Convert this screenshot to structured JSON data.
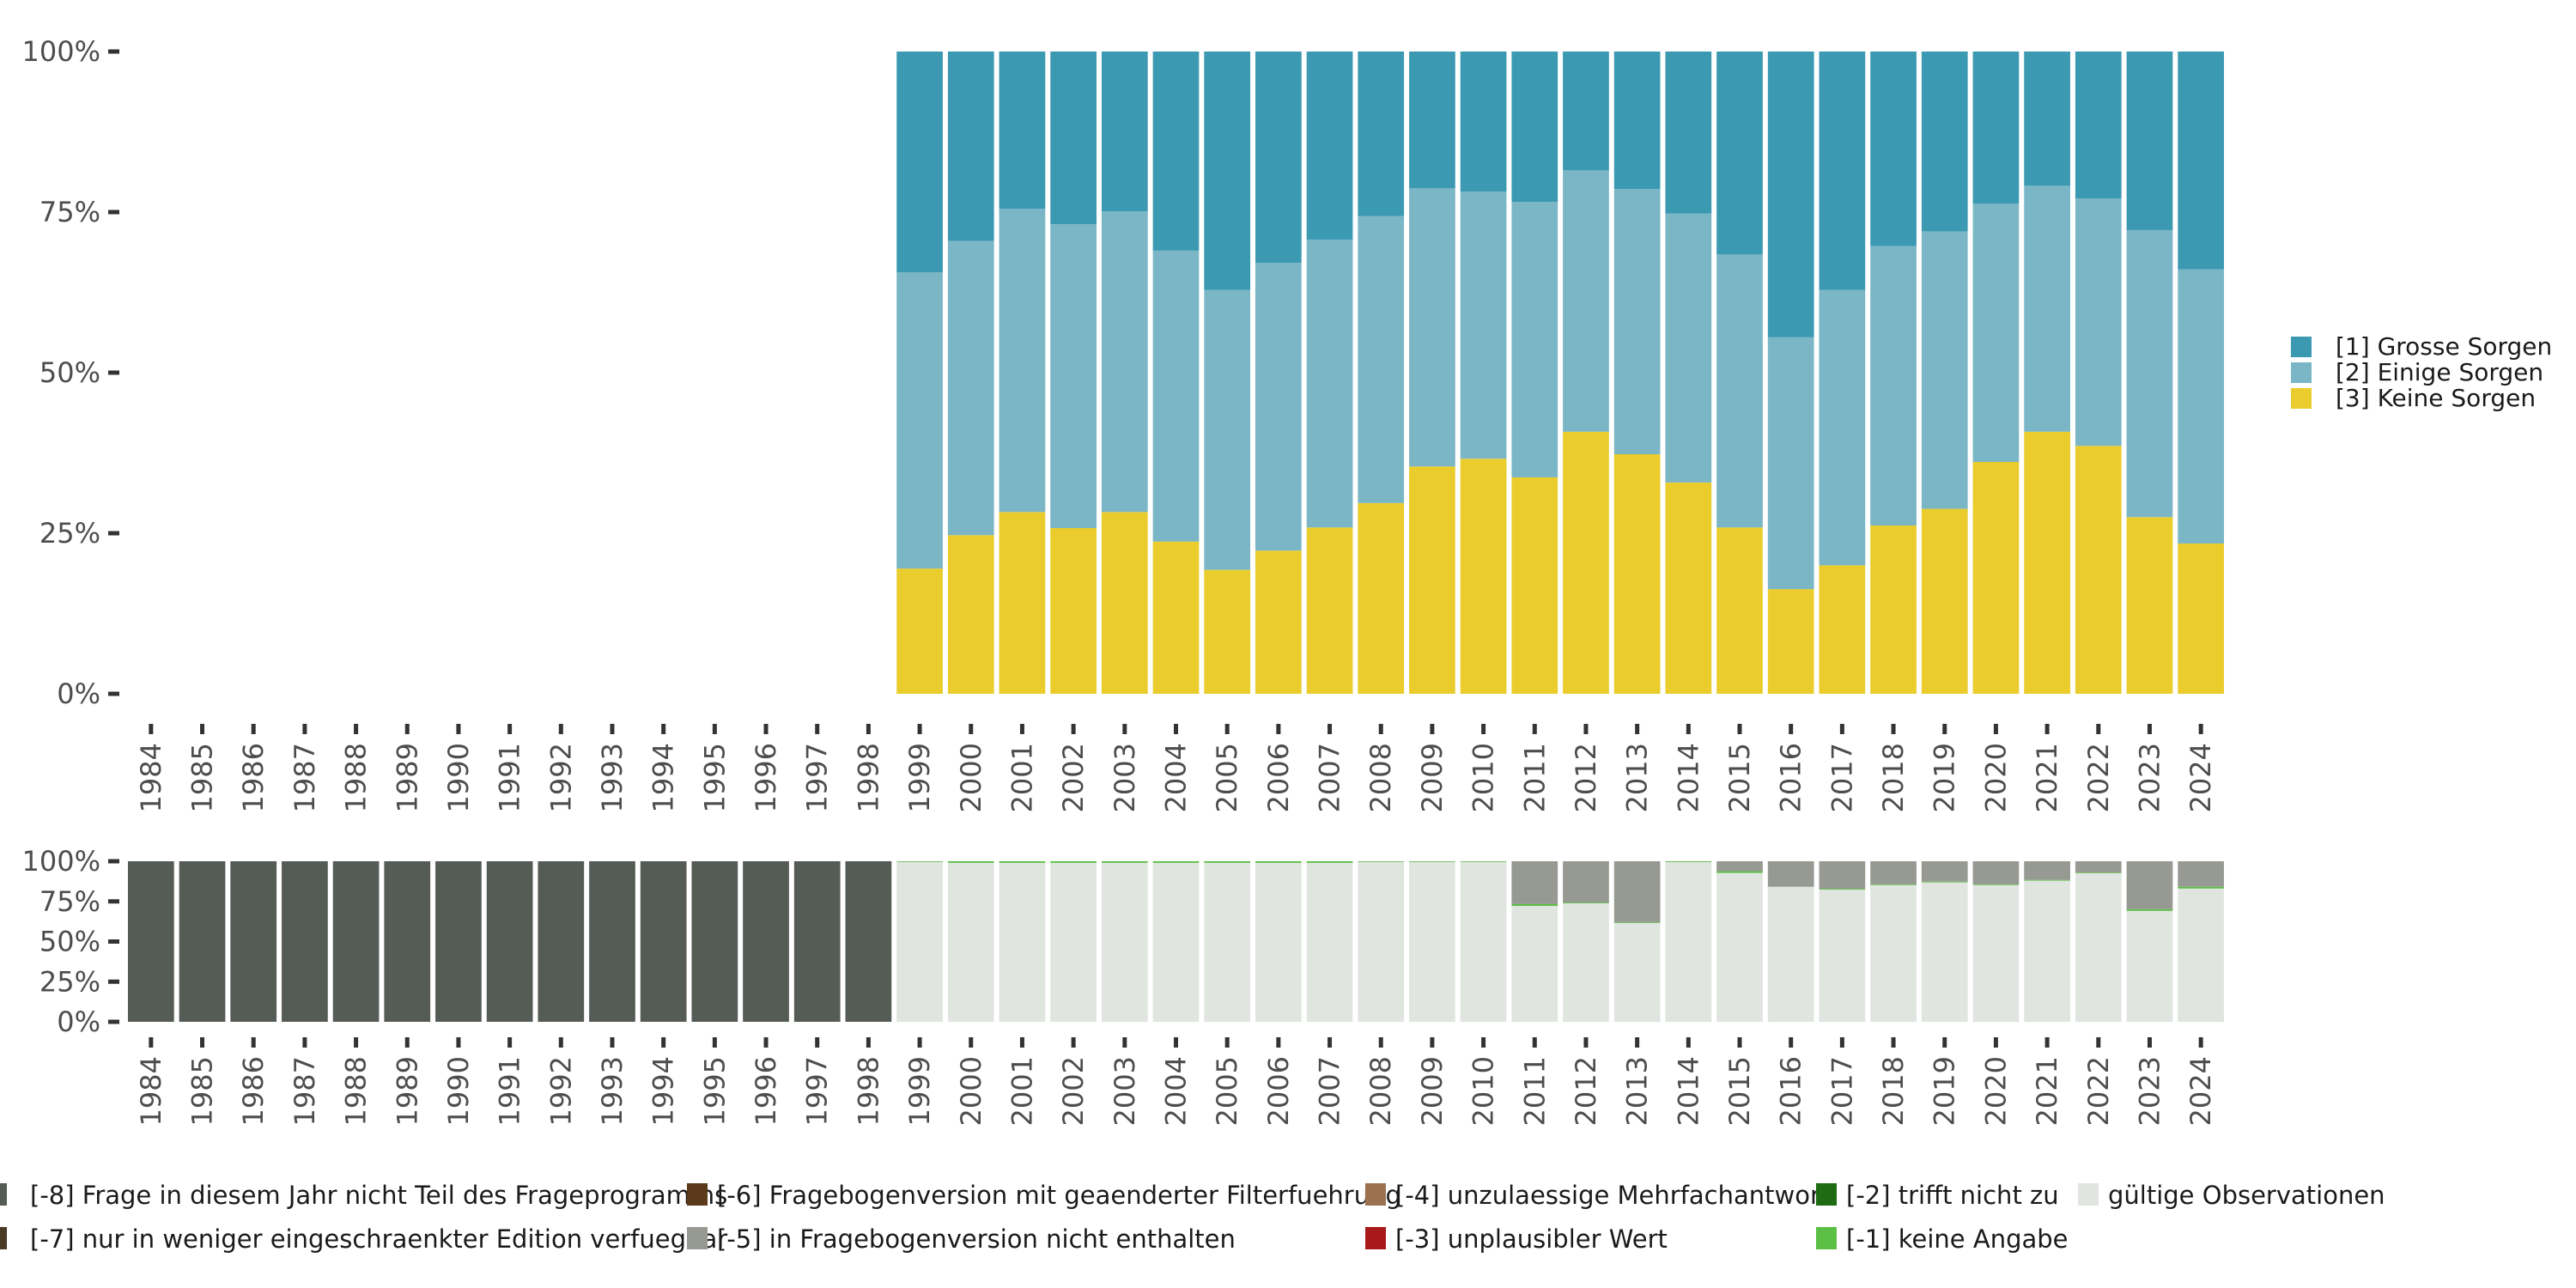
{
  "chart_data": [
    {
      "type": "bar",
      "stacked": true,
      "title": "",
      "xlabel": "",
      "ylabel": "",
      "ylim": [
        0,
        100
      ],
      "y_ticks": [
        "0%",
        "25%",
        "50%",
        "75%",
        "100%"
      ],
      "grid": false,
      "legend_position": "right",
      "categories": [
        "1984",
        "1985",
        "1986",
        "1987",
        "1988",
        "1989",
        "1990",
        "1991",
        "1992",
        "1993",
        "1994",
        "1995",
        "1996",
        "1997",
        "1998",
        "1999",
        "2000",
        "2001",
        "2002",
        "2003",
        "2004",
        "2005",
        "2006",
        "2007",
        "2008",
        "2009",
        "2010",
        "2011",
        "2012",
        "2013",
        "2014",
        "2015",
        "2016",
        "2017",
        "2018",
        "2019",
        "2020",
        "2021",
        "2022",
        "2023",
        "2024"
      ],
      "series": [
        {
          "name": "[3] Keine Sorgen",
          "color": "#EACD2C",
          "values": [
            null,
            null,
            null,
            null,
            null,
            null,
            null,
            null,
            null,
            null,
            null,
            null,
            null,
            null,
            null,
            19.5,
            24.7,
            28.3,
            25.8,
            28.3,
            23.7,
            19.3,
            22.3,
            25.9,
            29.7,
            35.4,
            36.6,
            33.7,
            40.8,
            37.3,
            32.9,
            25.9,
            16.3,
            20.0,
            26.2,
            28.8,
            36.1,
            40.8,
            38.6,
            27.5,
            23.4
          ]
        },
        {
          "name": "[2] Einige Sorgen",
          "color": "#7AB6C5",
          "values": [
            null,
            null,
            null,
            null,
            null,
            null,
            null,
            null,
            null,
            null,
            null,
            null,
            null,
            null,
            null,
            46.1,
            45.8,
            47.2,
            47.3,
            46.8,
            45.3,
            43.6,
            44.8,
            44.8,
            44.7,
            43.3,
            41.6,
            42.9,
            40.7,
            41.3,
            41.9,
            42.5,
            39.2,
            42.9,
            43.5,
            43.2,
            40.2,
            38.3,
            38.5,
            44.7,
            42.7
          ]
        },
        {
          "name": "[1] Grosse Sorgen",
          "color": "#3C99B2",
          "values": [
            null,
            null,
            null,
            null,
            null,
            null,
            null,
            null,
            null,
            null,
            null,
            null,
            null,
            null,
            null,
            34.4,
            29.5,
            24.5,
            26.9,
            24.9,
            31.0,
            37.1,
            32.9,
            29.3,
            25.6,
            21.3,
            21.8,
            23.4,
            18.5,
            21.4,
            25.2,
            31.6,
            44.5,
            37.1,
            30.3,
            28.0,
            23.7,
            20.9,
            22.9,
            27.8,
            33.9
          ]
        }
      ],
      "legend": [
        "[1] Grosse Sorgen",
        "[2] Einige Sorgen",
        "[3] Keine Sorgen"
      ]
    },
    {
      "type": "bar",
      "stacked": true,
      "title": "",
      "xlabel": "",
      "ylabel": "",
      "ylim": [
        0,
        100
      ],
      "y_ticks": [
        "0%",
        "25%",
        "50%",
        "75%",
        "100%"
      ],
      "grid": false,
      "legend_position": "bottom",
      "categories": [
        "1984",
        "1985",
        "1986",
        "1987",
        "1988",
        "1989",
        "1990",
        "1991",
        "1992",
        "1993",
        "1994",
        "1995",
        "1996",
        "1997",
        "1998",
        "1999",
        "2000",
        "2001",
        "2002",
        "2003",
        "2004",
        "2005",
        "2006",
        "2007",
        "2008",
        "2009",
        "2010",
        "2011",
        "2012",
        "2013",
        "2014",
        "2015",
        "2016",
        "2017",
        "2018",
        "2019",
        "2020",
        "2021",
        "2022",
        "2023",
        "2024"
      ],
      "series": [
        {
          "name": "gültige Observationen",
          "color": "#E0E5E0",
          "values": [
            0,
            0,
            0,
            0,
            0,
            0,
            0,
            0,
            0,
            0,
            0,
            0,
            0,
            0,
            0,
            99.6,
            99.0,
            99.0,
            99.0,
            99.0,
            99.0,
            99.0,
            99.0,
            99.0,
            99.6,
            99.6,
            99.6,
            72.2,
            73.8,
            61.6,
            99.5,
            92.7,
            84.1,
            82.4,
            85.2,
            86.8,
            85.2,
            87.9,
            92.6,
            69.1,
            83.0
          ]
        },
        {
          "name": "[-1] keine Angabe",
          "color": "#5BBF45",
          "values": [
            0,
            0,
            0,
            0,
            0,
            0,
            0,
            0,
            0,
            0,
            0,
            0,
            0,
            0,
            0,
            0.4,
            1.0,
            1.0,
            1.0,
            1.0,
            1.0,
            1.0,
            1.0,
            1.0,
            0.4,
            0.4,
            0.4,
            1.1,
            0.5,
            0.4,
            0.5,
            1.1,
            0.0,
            0.5,
            0.4,
            0.5,
            0.4,
            0.5,
            0.4,
            1.1,
            1.1
          ]
        },
        {
          "name": "[-5] in Fragebogenversion nicht enthalten",
          "color": "#979A92",
          "values": [
            0,
            0,
            0,
            0,
            0,
            0,
            0,
            0,
            0,
            0,
            0,
            0,
            0,
            0,
            0,
            0,
            0,
            0,
            0,
            0,
            0,
            0,
            0,
            0,
            0,
            0,
            0,
            26.7,
            25.7,
            38.0,
            0,
            6.2,
            15.9,
            17.1,
            14.4,
            12.7,
            14.4,
            11.6,
            7.0,
            29.8,
            15.9
          ]
        },
        {
          "name": "[-8] Frage in diesem Jahr nicht Teil des Frageprogramms",
          "color": "#555B55",
          "values": [
            100,
            100,
            100,
            100,
            100,
            100,
            100,
            100,
            100,
            100,
            100,
            100,
            100,
            100,
            100,
            0,
            0,
            0,
            0,
            0,
            0,
            0,
            0,
            0,
            0,
            0,
            0,
            0,
            0,
            0,
            0,
            0,
            0,
            0,
            0,
            0,
            0,
            0,
            0,
            0,
            0
          ]
        }
      ],
      "legend": [
        {
          "label": "[-8] Frage in diesem Jahr nicht Teil des Frageprogramms",
          "color": "#555B55"
        },
        {
          "label": "[-7] nur in weniger eingeschraenkter Edition verfuegbar",
          "color": "#4A3A26"
        },
        {
          "label": "[-6] Fragebogenversion mit geaenderter Filterfuehrung",
          "color": "#5A3A1A"
        },
        {
          "label": "[-5] in Fragebogenversion nicht enthalten",
          "color": "#979A92"
        },
        {
          "label": "[-4] unzulaessige Mehrfachantwort",
          "color": "#9B7150"
        },
        {
          "label": "[-3] unplausibler Wert",
          "color": "#A8191B"
        },
        {
          "label": "[-2] trifft nicht zu",
          "color": "#1F6B13"
        },
        {
          "label": "[-1] keine Angabe",
          "color": "#5BBF45"
        },
        {
          "label": "gültige Observationen",
          "color": "#E0E5E0"
        }
      ]
    }
  ]
}
